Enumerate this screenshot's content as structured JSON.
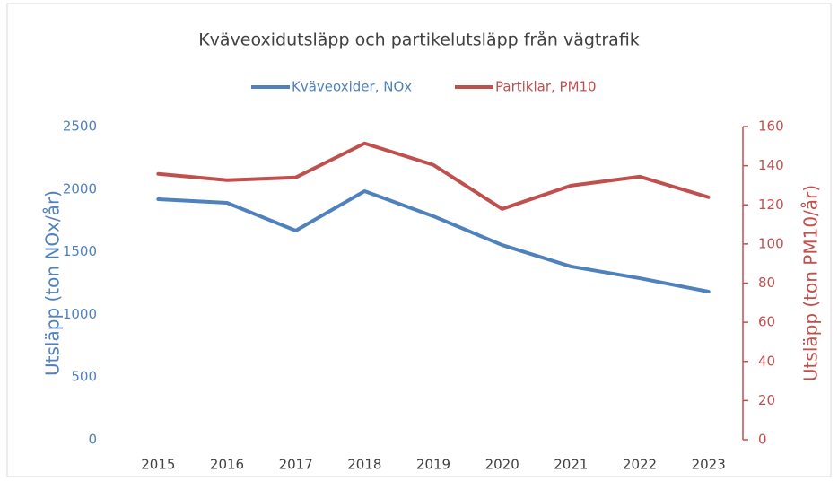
{
  "chart_data": {
    "type": "line",
    "title": "Kväveoxidutsläpp och partikelutsläpp från vägtrafik",
    "categories": [
      "2015",
      "2016",
      "2017",
      "2018",
      "2019",
      "2020",
      "2021",
      "2022",
      "2023"
    ],
    "series": [
      {
        "name": "Kväveoxider, NOx",
        "color": "#4f81bd",
        "values": [
          1920,
          1891,
          1669,
          1984,
          1784,
          1554,
          1383,
          1289,
          1182
        ]
      },
      {
        "name": "Partiklar, PM10",
        "color": "#c0504d",
        "axis": "y2",
        "values": [
          135.8,
          132.6,
          134,
          151.4,
          140.4,
          117.9,
          129.8,
          134.4,
          123.9
        ]
      }
    ],
    "ylabel": "Utsläpp (ton NOx/år)",
    "y2label": "Utsläpp (ton PM10/år)",
    "ylim": [
      0,
      2500
    ],
    "yticks": [
      0,
      500,
      1000,
      1500,
      2000,
      2500
    ],
    "y2lim": [
      0,
      160
    ],
    "y2ticks": [
      0,
      20,
      40,
      60,
      80,
      100,
      120,
      140,
      160
    ],
    "legend": "top"
  }
}
